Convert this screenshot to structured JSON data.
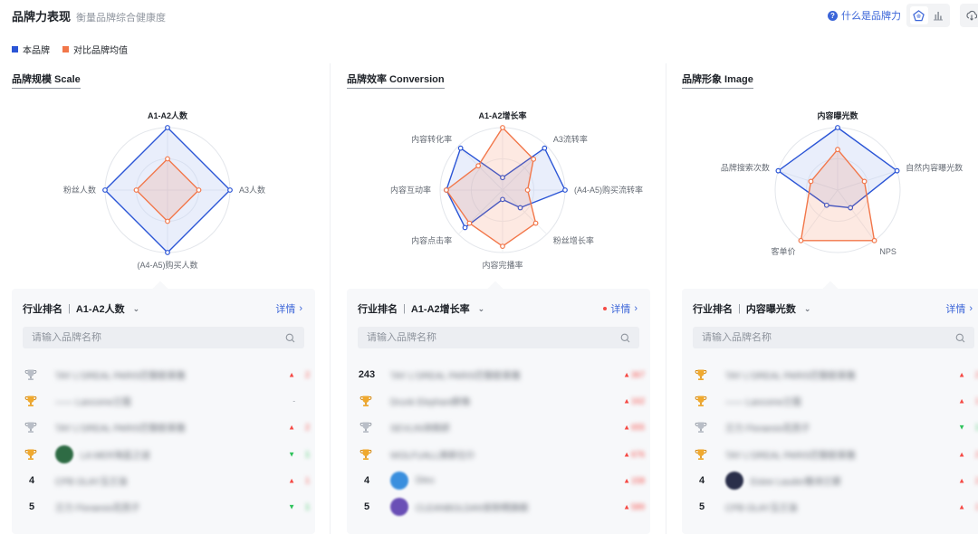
{
  "header": {
    "title": "品牌力表现",
    "subtitle": "衡量品牌综合健康度",
    "help_label": "什么是品牌力"
  },
  "legend": [
    {
      "label": "本品牌",
      "color": "#2b55d6"
    },
    {
      "label": "对比品牌均值",
      "color": "#f2774a"
    }
  ],
  "colors": {
    "brand": "#2b55d6",
    "compare": "#f2774a",
    "accent": "#3b65d8"
  },
  "panels": [
    {
      "title": "品牌规模 Scale",
      "axes": [
        "A1-A2人数",
        "A3人数",
        "(A4-A5)购买人数",
        "粉丝人数"
      ],
      "selected_axis": 0,
      "brand_values": [
        1.0,
        1.0,
        1.0,
        1.0
      ],
      "compare_values": [
        0.5,
        0.5,
        0.5,
        0.5
      ],
      "card": {
        "rank_label": "行业排名",
        "metric": "A1-A2人数",
        "detail_label": "详情",
        "show_dot": false,
        "search_placeholder": "请输入品牌名称",
        "rows": [
          {
            "rank": "",
            "medal": "silver",
            "logo": "",
            "name": "TAY L'OREAL PARIS巴黎欧莱雅",
            "trend": "up",
            "delta": "2"
          },
          {
            "rank": "",
            "medal": "gold",
            "logo": "",
            "name": "—— Lancome兰蔻",
            "trend": "flat",
            "delta": ""
          },
          {
            "rank": "",
            "medal": "silver",
            "logo": "",
            "name": "TAY L'OREAL PARIS巴黎欧莱雅",
            "trend": "up",
            "delta": "2"
          },
          {
            "rank": "",
            "medal": "gold",
            "logo": "#2e6b44",
            "name": "LA MER海蓝之谜",
            "trend": "down",
            "delta": "1"
          },
          {
            "rank": "4",
            "medal": "",
            "logo": "",
            "name": "CPB OLAY玉兰油",
            "trend": "up",
            "delta": "1"
          },
          {
            "rank": "5",
            "medal": "",
            "logo": "",
            "name": "兰力 Floraesis花西子",
            "trend": "down",
            "delta": "1"
          }
        ]
      }
    },
    {
      "title": "品牌效率 Conversion",
      "axes": [
        "A1-A2增长率",
        "A3流转率",
        "(A4-A5)购买流转率",
        "粉丝增长率",
        "内容完播率",
        "内容点击率",
        "内容互动率",
        "内容转化率"
      ],
      "selected_axis": 0,
      "brand_values": [
        0.2,
        0.95,
        1.0,
        0.4,
        0.15,
        0.85,
        0.9,
        0.95
      ],
      "compare_values": [
        1.0,
        0.7,
        0.4,
        0.75,
        0.9,
        0.75,
        0.9,
        0.55
      ],
      "card": {
        "rank_label": "行业排名",
        "metric": "A1-A2增长率",
        "detail_label": "详情",
        "show_dot": true,
        "search_placeholder": "请输入品牌名称",
        "rows": [
          {
            "rank": "243",
            "medal": "",
            "logo": "",
            "name": "TAY L'OREAL PARIS巴黎欧莱雅",
            "trend": "up",
            "delta": "367"
          },
          {
            "rank": "",
            "medal": "gold",
            "logo": "",
            "name": "Drunk Elephant醉象",
            "trend": "up",
            "delta": "162"
          },
          {
            "rank": "",
            "medal": "silver",
            "logo": "",
            "name": "SEVLIN诗佩妍",
            "trend": "up",
            "delta": "655"
          },
          {
            "rank": "",
            "medal": "gold",
            "logo": "",
            "name": "WOLFUALL焕新仕仆",
            "trend": "up",
            "delta": "676"
          },
          {
            "rank": "4",
            "medal": "",
            "logo": "#3a8fde",
            "name": "Dieu",
            "trend": "up",
            "delta": "158"
          },
          {
            "rank": "5",
            "medal": "",
            "logo": "#6a4fb6",
            "name": "CLEANBOLDAN安耐晒旗舰",
            "trend": "up",
            "delta": "589"
          }
        ]
      }
    },
    {
      "title": "品牌形象 Image",
      "axes": [
        "内容曝光数",
        "自然内容曝光数",
        "NPS",
        "客单价",
        "品牌搜索次数"
      ],
      "selected_axis": 0,
      "brand_values": [
        1.0,
        1.0,
        0.35,
        0.3,
        1.0
      ],
      "compare_values": [
        0.65,
        0.45,
        1.0,
        1.0,
        0.45
      ],
      "card": {
        "rank_label": "行业排名",
        "metric": "内容曝光数",
        "detail_label": "详情",
        "show_dot": false,
        "search_placeholder": "请输入品牌名称",
        "rows": [
          {
            "rank": "",
            "medal": "gold",
            "logo": "",
            "name": "TAY L'OREAL PARIS巴黎欧莱雅",
            "trend": "up",
            "delta": "2"
          },
          {
            "rank": "",
            "medal": "gold",
            "logo": "",
            "name": "—— Lancome兰蔻",
            "trend": "up",
            "delta": "1"
          },
          {
            "rank": "",
            "medal": "silver",
            "logo": "",
            "name": "兰力 Floraesis花西子",
            "trend": "down",
            "delta": "1"
          },
          {
            "rank": "",
            "medal": "gold",
            "logo": "",
            "name": "TAY L'OREAL PARIS巴黎欧莱雅",
            "trend": "up",
            "delta": "2"
          },
          {
            "rank": "4",
            "medal": "",
            "logo": "#2a2f4a",
            "name": "Estee Lauder雅诗兰黛",
            "trend": "up",
            "delta": "2"
          },
          {
            "rank": "5",
            "medal": "",
            "logo": "",
            "name": "CPB OLAY玉兰油",
            "trend": "up",
            "delta": "1"
          }
        ]
      }
    }
  ]
}
